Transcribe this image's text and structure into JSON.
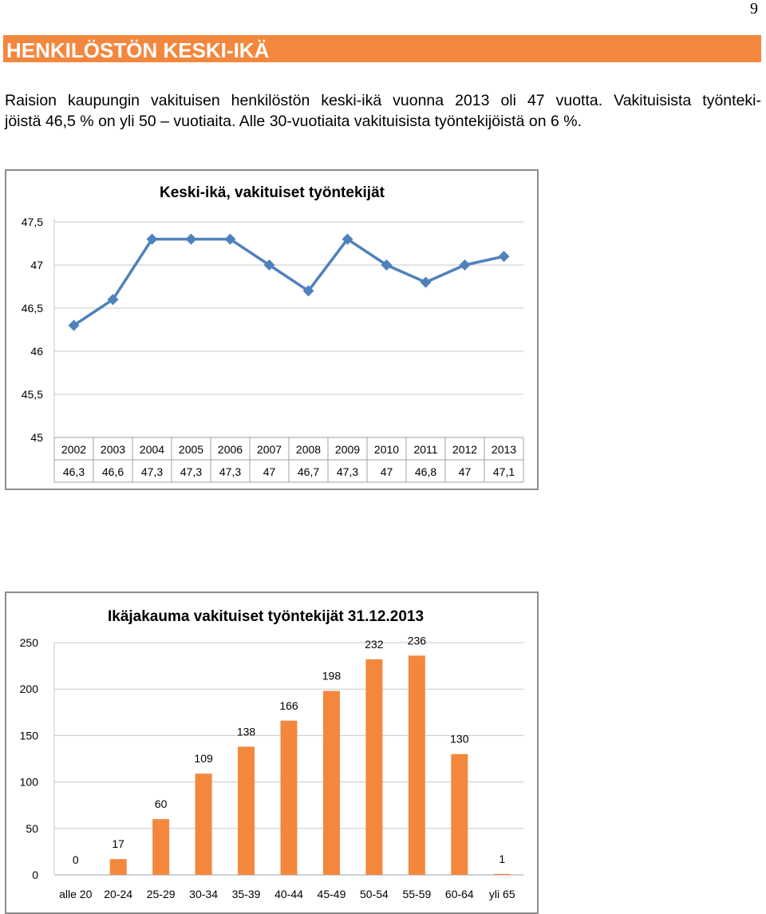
{
  "page": {
    "number": "9",
    "section_title": "HENKILÖSTÖN KESKI-IKÄ",
    "intro_line1": "Raision kaupungin vakituisen henkilöstön keski-ikä vuonna 2013 oli 47 vuotta. Vakituisista työnteki-",
    "intro_line2": "jöistä 46,5 % on yli 50 – vuotiaita. Alle 30-vuotiaita vakituisista työntekijöistä on 6 %."
  },
  "chart_data": [
    {
      "type": "line",
      "title": "Keski-ikä, vakituiset työntekijät",
      "categories": [
        "2002",
        "2003",
        "2004",
        "2005",
        "2006",
        "2007",
        "2008",
        "2009",
        "2010",
        "2011",
        "2012",
        "2013"
      ],
      "values": [
        46.3,
        46.6,
        47.3,
        47.3,
        47.3,
        47,
        46.7,
        47.3,
        47,
        46.8,
        47,
        47.1
      ],
      "value_labels": [
        "46,3",
        "46,6",
        "47,3",
        "47,3",
        "47,3",
        "47",
        "46,7",
        "47,3",
        "47",
        "46,8",
        "47",
        "47,1"
      ],
      "y_ticks": [
        "47,5",
        "47",
        "46,5",
        "46",
        "45,5",
        "45"
      ],
      "y_tick_values": [
        47.5,
        47,
        46.5,
        46,
        45.5,
        45
      ],
      "ylim": [
        45,
        47.5
      ],
      "grid": true,
      "data_table": true,
      "line_color": "#4f81bd"
    },
    {
      "type": "bar",
      "title": "Ikäjakauma vakituiset työntekijät 31.12.2013",
      "categories": [
        "alle 20",
        "20-24",
        "25-29",
        "30-34",
        "35-39",
        "40-44",
        "45-49",
        "50-54",
        "55-59",
        "60-64",
        "yli 65"
      ],
      "values": [
        0,
        17,
        60,
        109,
        138,
        166,
        198,
        232,
        236,
        130,
        1
      ],
      "value_labels": [
        "0",
        "17",
        "60",
        "109",
        "138",
        "166",
        "198",
        "232",
        "236",
        "130",
        "1"
      ],
      "y_ticks": [
        "250",
        "200",
        "150",
        "100",
        "50",
        "0"
      ],
      "y_tick_values": [
        250,
        200,
        150,
        100,
        50,
        0
      ],
      "ylim": [
        0,
        250
      ],
      "grid": true,
      "bar_color": "#f4873e"
    }
  ]
}
